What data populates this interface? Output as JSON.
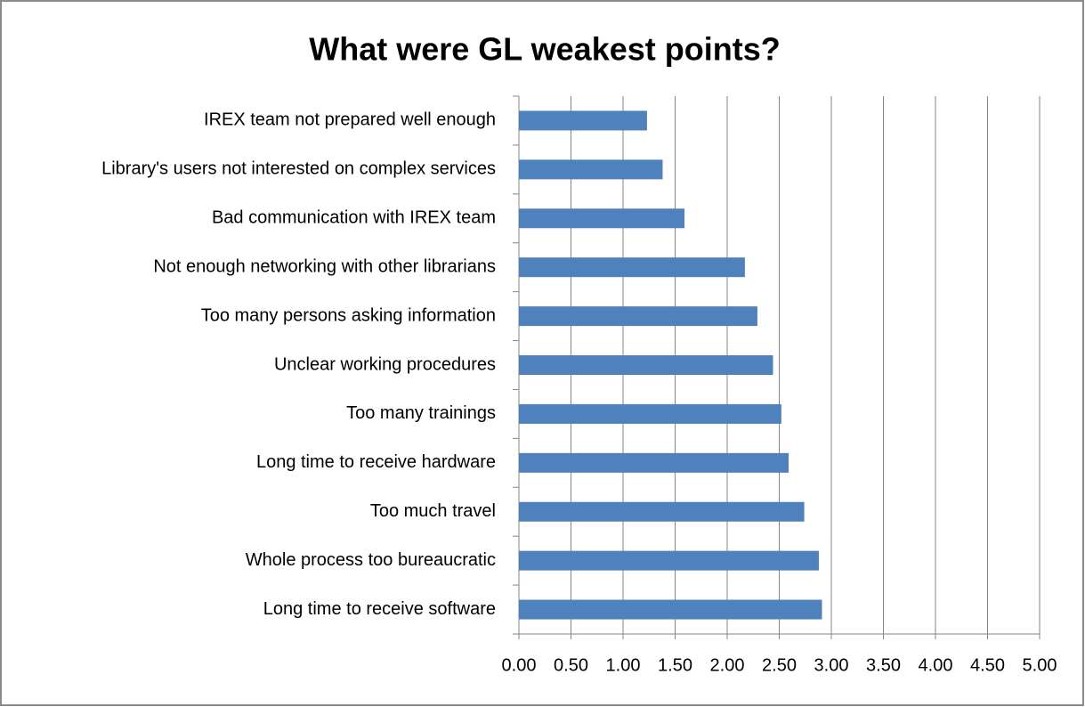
{
  "chart_data": {
    "type": "bar",
    "orientation": "horizontal",
    "title": "What were GL weakest points?",
    "categories": [
      "IREX team not prepared well enough",
      "Library's users not interested on complex services",
      "Bad communication with IREX team",
      "Not enough networking with other librarians",
      "Too many persons asking information",
      "Unclear working procedures",
      "Too many trainings",
      "Long time to receive hardware",
      "Too much travel",
      "Whole process too bureaucratic",
      "Long time to receive software"
    ],
    "values": [
      1.23,
      1.38,
      1.59,
      2.17,
      2.29,
      2.44,
      2.52,
      2.59,
      2.74,
      2.88,
      2.91
    ],
    "color": "#4f81bd",
    "xlim": [
      0,
      5
    ],
    "xticks": [
      {
        "value": 0,
        "label": "0.00"
      },
      {
        "value": 0.5,
        "label": "0.50"
      },
      {
        "value": 1,
        "label": "1.00"
      },
      {
        "value": 1.5,
        "label": "1.50"
      },
      {
        "value": 2,
        "label": "2.00"
      },
      {
        "value": 2.5,
        "label": "2.50"
      },
      {
        "value": 3,
        "label": "3.00"
      },
      {
        "value": 3.5,
        "label": "3.50"
      },
      {
        "value": 4,
        "label": "4.00"
      },
      {
        "value": 4.5,
        "label": "4.50"
      },
      {
        "value": 5,
        "label": "5.00"
      }
    ],
    "grid": true
  }
}
